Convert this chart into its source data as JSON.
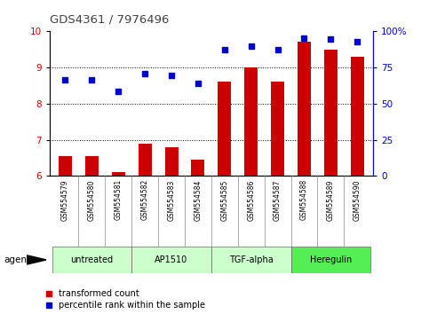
{
  "title": "GDS4361 / 7976496",
  "samples": [
    "GSM554579",
    "GSM554580",
    "GSM554581",
    "GSM554582",
    "GSM554583",
    "GSM554584",
    "GSM554585",
    "GSM554586",
    "GSM554587",
    "GSM554588",
    "GSM554589",
    "GSM554590"
  ],
  "bar_values": [
    6.55,
    6.55,
    6.1,
    6.88,
    6.78,
    6.45,
    8.6,
    9.0,
    8.6,
    9.72,
    9.5,
    9.3
  ],
  "dot_values": [
    8.65,
    8.65,
    8.35,
    8.82,
    8.78,
    8.55,
    9.5,
    9.6,
    9.5,
    9.82,
    9.78,
    9.72
  ],
  "bar_color": "#cc0000",
  "dot_color": "#0000cc",
  "ylim_left": [
    6,
    10
  ],
  "ylim_right": [
    0,
    100
  ],
  "yticks_left": [
    6,
    7,
    8,
    9,
    10
  ],
  "yticks_right": [
    0,
    25,
    50,
    75,
    100
  ],
  "ytick_labels_right": [
    "0",
    "25",
    "50",
    "75",
    "100%"
  ],
  "groups": [
    {
      "label": "untreated",
      "start": 0,
      "end": 3
    },
    {
      "label": "AP1510",
      "start": 3,
      "end": 6
    },
    {
      "label": "TGF-alpha",
      "start": 6,
      "end": 9
    },
    {
      "label": "Heregulin",
      "start": 9,
      "end": 12
    }
  ],
  "group_colors": [
    "#ccffcc",
    "#ccffcc",
    "#ccffcc",
    "#55ee55"
  ],
  "agent_label": "agent",
  "legend_bar": "transformed count",
  "legend_dot": "percentile rank within the sample",
  "title_color": "#444444",
  "sample_box_color": "#d8d8d8",
  "sample_box_edge": "#aaaaaa",
  "plot_bg": "#ffffff"
}
